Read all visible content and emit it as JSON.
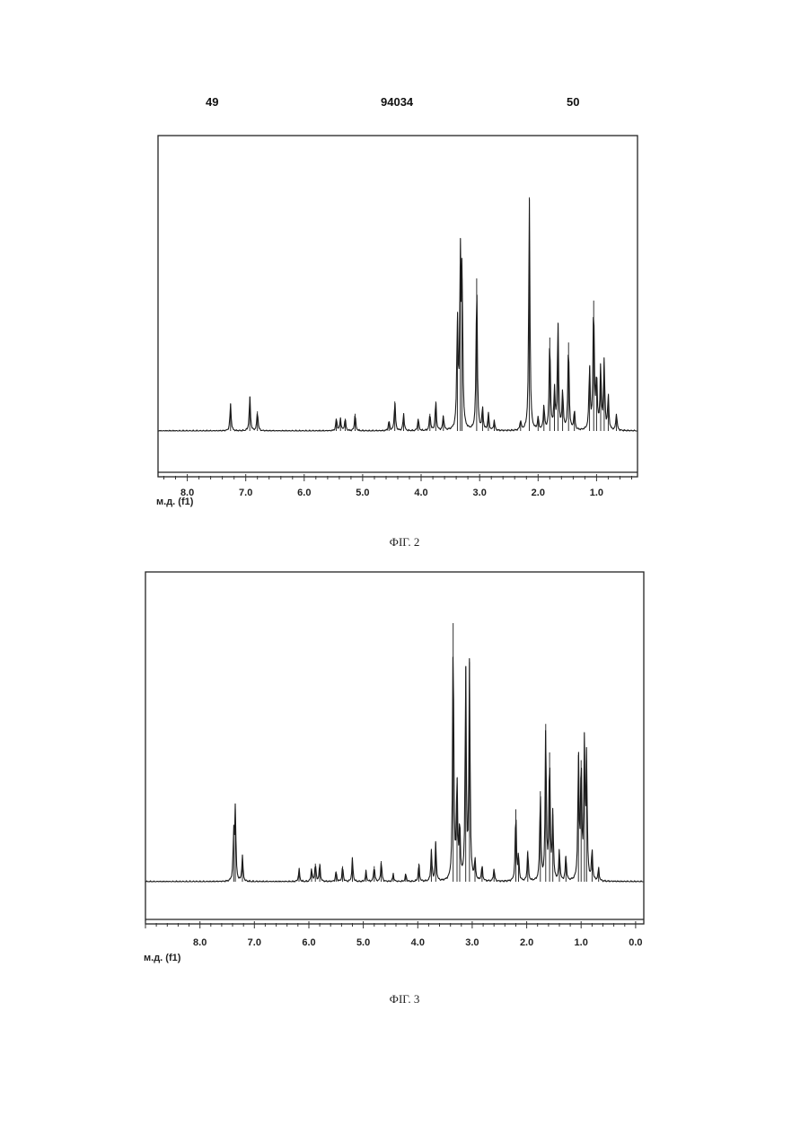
{
  "header": {
    "left": "49",
    "center": "94034",
    "right": "50"
  },
  "chart_data": [
    {
      "type": "line",
      "caption": "ФІГ. 2",
      "xlabel": "м.д. (f1)",
      "xlim": [
        8.5,
        0.3
      ],
      "tick_values": [
        8.0,
        7.0,
        6.0,
        5.0,
        4.0,
        3.0,
        2.0,
        1.0
      ],
      "tick_labels": [
        "8.0",
        "7.0",
        "6.0",
        "5.0",
        "4.0",
        "3.0",
        "2.0",
        "1.0"
      ],
      "peaks": [
        {
          "x": 7.26,
          "y": 0.11
        },
        {
          "x": 6.93,
          "y": 0.14
        },
        {
          "x": 6.8,
          "y": 0.08
        },
        {
          "x": 5.45,
          "y": 0.05
        },
        {
          "x": 5.38,
          "y": 0.05
        },
        {
          "x": 5.3,
          "y": 0.05
        },
        {
          "x": 5.13,
          "y": 0.07
        },
        {
          "x": 4.55,
          "y": 0.04
        },
        {
          "x": 4.45,
          "y": 0.12
        },
        {
          "x": 4.3,
          "y": 0.07
        },
        {
          "x": 4.05,
          "y": 0.05
        },
        {
          "x": 3.85,
          "y": 0.07
        },
        {
          "x": 3.75,
          "y": 0.12
        },
        {
          "x": 3.62,
          "y": 0.06
        },
        {
          "x": 3.38,
          "y": 0.45
        },
        {
          "x": 3.33,
          "y": 0.68
        },
        {
          "x": 3.3,
          "y": 0.62
        },
        {
          "x": 3.05,
          "y": 0.62
        },
        {
          "x": 2.95,
          "y": 0.09
        },
        {
          "x": 2.85,
          "y": 0.07
        },
        {
          "x": 2.75,
          "y": 0.04
        },
        {
          "x": 2.3,
          "y": 0.04
        },
        {
          "x": 2.15,
          "y": 0.95
        },
        {
          "x": 2.0,
          "y": 0.05
        },
        {
          "x": 1.9,
          "y": 0.1
        },
        {
          "x": 1.8,
          "y": 0.38
        },
        {
          "x": 1.72,
          "y": 0.16
        },
        {
          "x": 1.66,
          "y": 0.44
        },
        {
          "x": 1.58,
          "y": 0.16
        },
        {
          "x": 1.48,
          "y": 0.36
        },
        {
          "x": 1.38,
          "y": 0.08
        },
        {
          "x": 1.12,
          "y": 0.26
        },
        {
          "x": 1.05,
          "y": 0.53
        },
        {
          "x": 1.0,
          "y": 0.22
        },
        {
          "x": 0.93,
          "y": 0.26
        },
        {
          "x": 0.87,
          "y": 0.28
        },
        {
          "x": 0.8,
          "y": 0.14
        },
        {
          "x": 0.66,
          "y": 0.07
        }
      ]
    },
    {
      "type": "line",
      "caption": "ФІГ. 3",
      "xlabel": "м.д. (f1)",
      "xlim": [
        9.0,
        -0.15
      ],
      "tick_values": [
        8.0,
        7.0,
        6.0,
        5.0,
        4.0,
        3.0,
        2.0,
        1.0,
        0.0
      ],
      "tick_labels": [
        "8.0",
        "7.0",
        "6.0",
        "5.0",
        "4.0",
        "3.0",
        "2.0",
        "1.0",
        "0.0"
      ],
      "peaks": [
        {
          "x": 7.35,
          "y": 0.28
        },
        {
          "x": 7.38,
          "y": 0.18
        },
        {
          "x": 7.22,
          "y": 0.1
        },
        {
          "x": 6.18,
          "y": 0.05
        },
        {
          "x": 5.95,
          "y": 0.05
        },
        {
          "x": 5.88,
          "y": 0.07
        },
        {
          "x": 5.8,
          "y": 0.07
        },
        {
          "x": 5.5,
          "y": 0.04
        },
        {
          "x": 5.38,
          "y": 0.06
        },
        {
          "x": 5.2,
          "y": 0.09
        },
        {
          "x": 4.95,
          "y": 0.04
        },
        {
          "x": 4.8,
          "y": 0.06
        },
        {
          "x": 4.67,
          "y": 0.08
        },
        {
          "x": 4.45,
          "y": 0.03
        },
        {
          "x": 4.22,
          "y": 0.03
        },
        {
          "x": 3.98,
          "y": 0.07
        },
        {
          "x": 3.75,
          "y": 0.12
        },
        {
          "x": 3.67,
          "y": 0.15
        },
        {
          "x": 3.35,
          "y": 1.0
        },
        {
          "x": 3.28,
          "y": 0.4
        },
        {
          "x": 3.23,
          "y": 0.22
        },
        {
          "x": 3.12,
          "y": 0.83
        },
        {
          "x": 3.05,
          "y": 0.85
        },
        {
          "x": 2.95,
          "y": 0.08
        },
        {
          "x": 2.82,
          "y": 0.06
        },
        {
          "x": 2.6,
          "y": 0.05
        },
        {
          "x": 2.2,
          "y": 0.28
        },
        {
          "x": 2.15,
          "y": 0.1
        },
        {
          "x": 1.98,
          "y": 0.12
        },
        {
          "x": 1.75,
          "y": 0.35
        },
        {
          "x": 1.65,
          "y": 0.61
        },
        {
          "x": 1.58,
          "y": 0.5
        },
        {
          "x": 1.52,
          "y": 0.26
        },
        {
          "x": 1.4,
          "y": 0.12
        },
        {
          "x": 1.28,
          "y": 0.1
        },
        {
          "x": 1.05,
          "y": 0.49
        },
        {
          "x": 1.0,
          "y": 0.47
        },
        {
          "x": 0.94,
          "y": 0.52
        },
        {
          "x": 0.9,
          "y": 0.47
        },
        {
          "x": 0.8,
          "y": 0.12
        },
        {
          "x": 0.68,
          "y": 0.05
        }
      ]
    }
  ]
}
